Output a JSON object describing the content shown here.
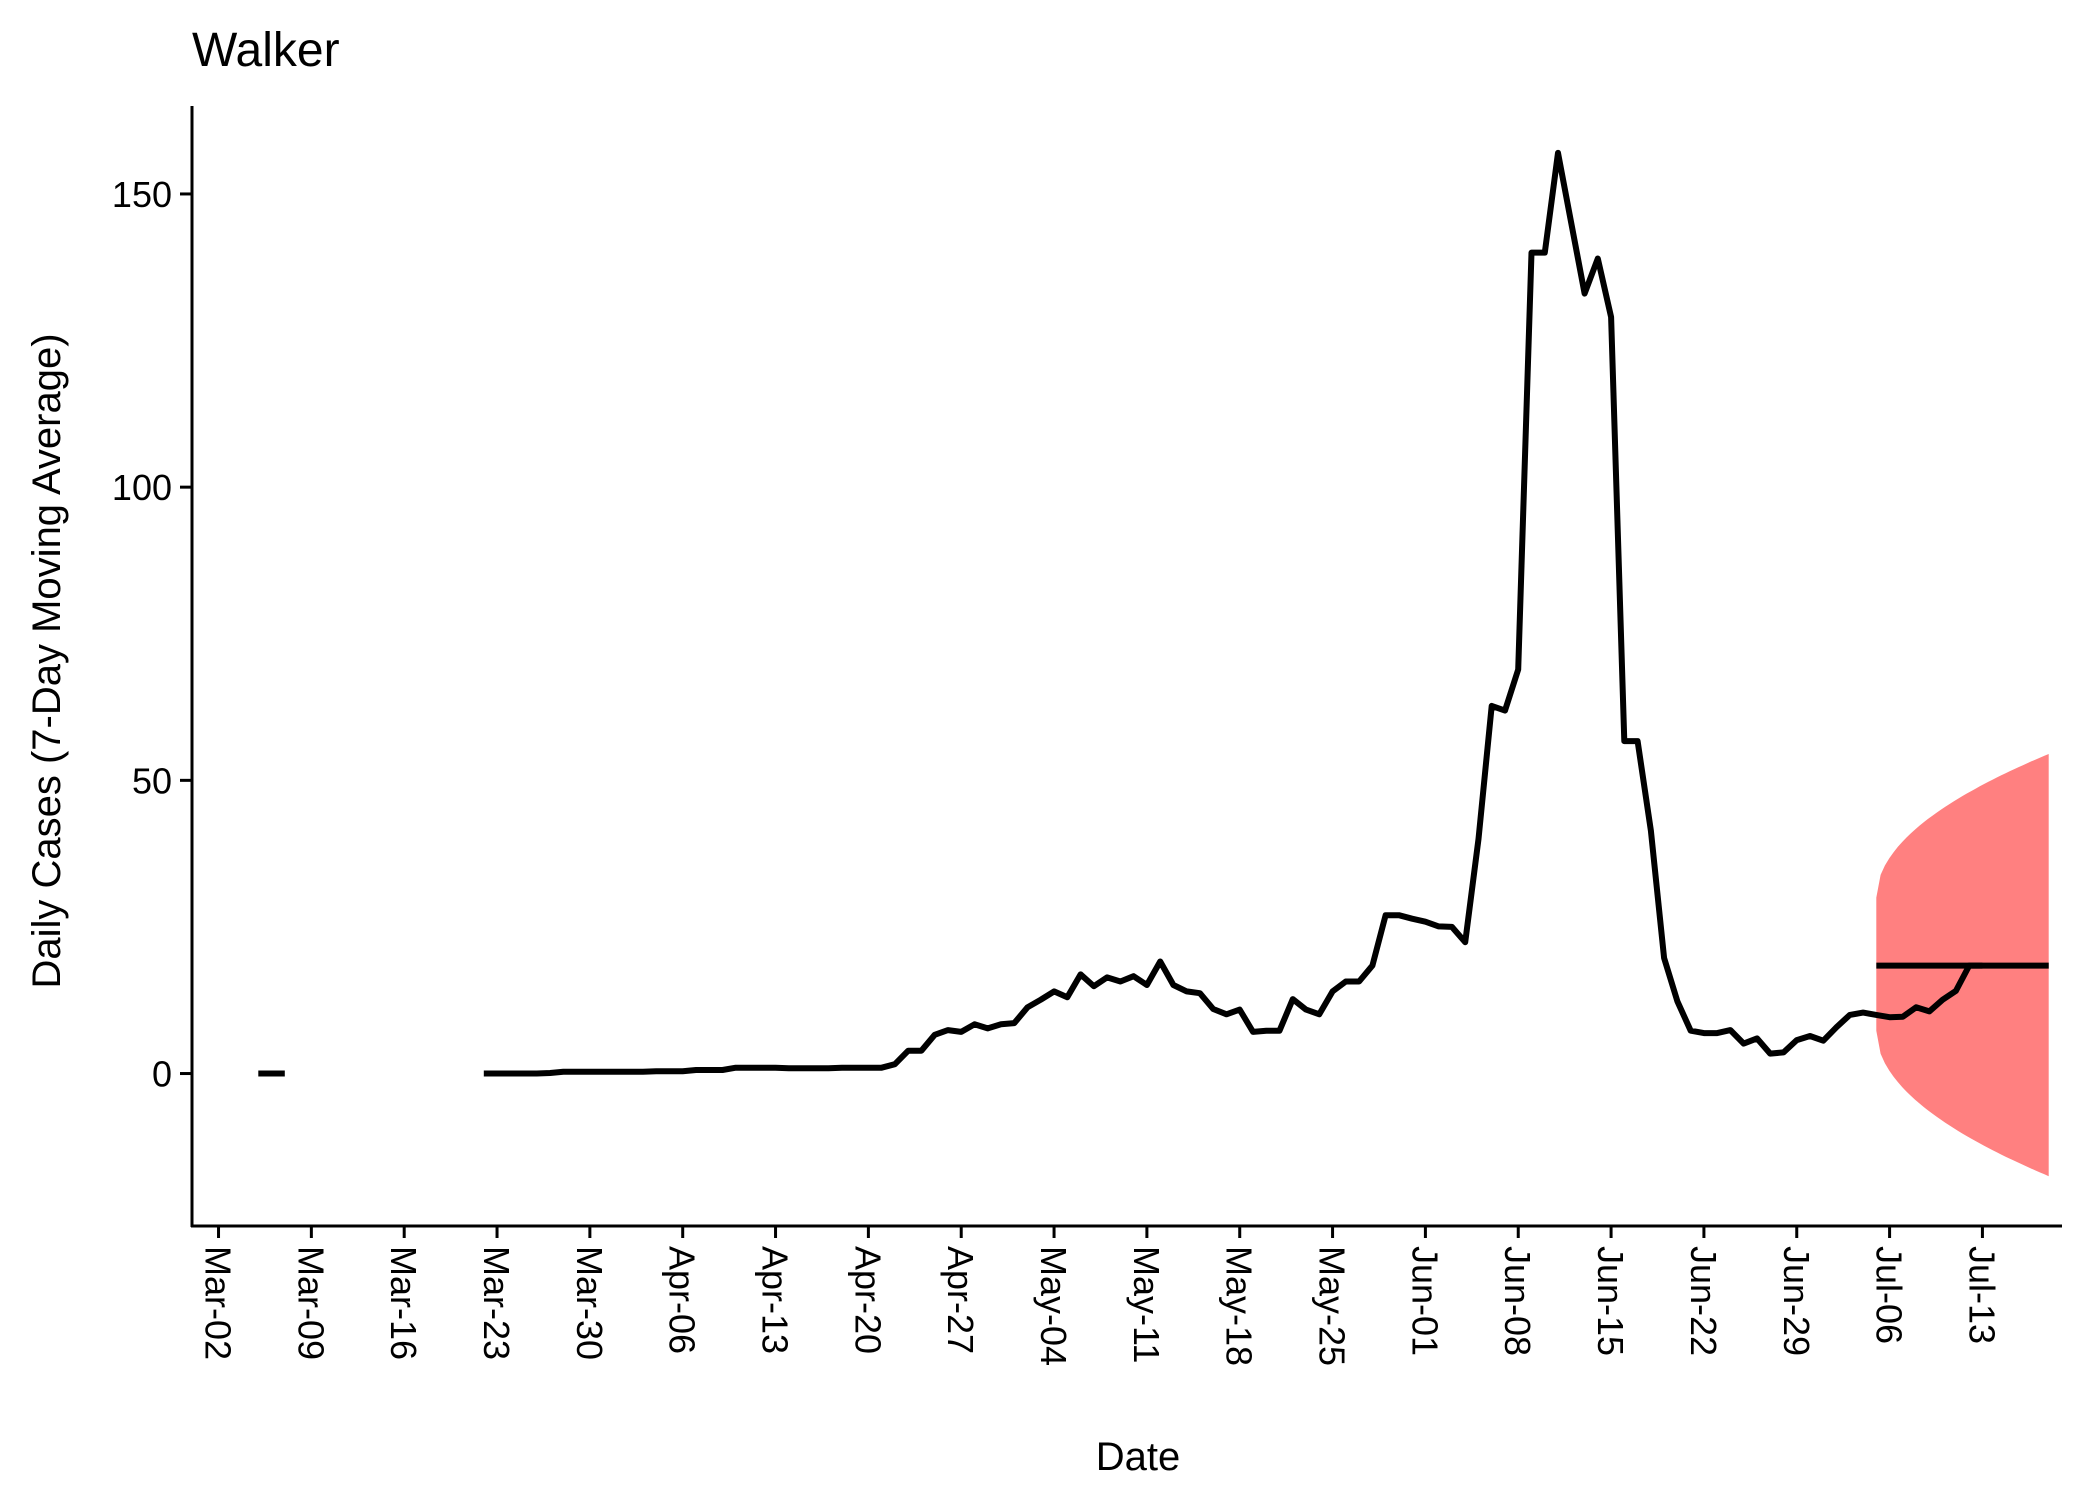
{
  "chart_data": {
    "type": "line",
    "title": "Walker",
    "xlabel": "Date",
    "ylabel": "Daily Cases (7-Day Moving Average)",
    "x_ticks": [
      "Mar-02",
      "Mar-09",
      "Mar-16",
      "Mar-23",
      "Mar-30",
      "Apr-06",
      "Apr-13",
      "Apr-20",
      "Apr-27",
      "May-04",
      "May-11",
      "May-18",
      "May-25",
      "Jun-01",
      "Jun-08",
      "Jun-15",
      "Jun-22",
      "Jun-29",
      "Jul-06",
      "Jul-13"
    ],
    "y_ticks": [
      0,
      50,
      100,
      150
    ],
    "ylim": [
      -26,
      165
    ],
    "xlim": [
      "2020-02-29",
      "2020-07-19"
    ],
    "grid": false,
    "series": [
      {
        "segments": [
          {
            "start": "2020-03-05",
            "values": [
              0,
              0,
              0
            ]
          },
          {
            "start": "2020-03-22",
            "values": [
              0,
              0,
              0,
              0,
              0,
              0.1,
              0.3,
              0.3,
              0.3,
              0.3,
              0.3,
              0.3,
              0.3,
              0.4,
              0.4,
              0.4,
              0.6,
              0.6,
              0.6,
              1,
              1,
              1,
              1,
              0.9,
              0.9,
              0.9,
              0.9,
              1,
              1,
              1,
              1,
              1.6,
              3.9,
              3.9,
              6.6,
              7.4,
              7.1,
              8.4,
              7.7,
              8.4,
              8.6,
              11.3,
              12.6,
              14,
              13,
              16.9,
              14.9,
              16.4,
              15.7,
              16.6,
              15.1,
              19.1,
              15.1,
              14,
              13.7,
              11,
              10.1,
              10.9,
              7.1,
              7.3,
              7.3,
              12.7,
              10.9,
              10.1,
              14,
              15.7,
              15.7,
              18.4,
              27,
              27,
              26.4,
              25.9,
              25.1,
              25,
              22.4,
              40,
              62.7,
              61.9,
              68.9,
              140,
              140,
              157,
              145,
              133,
              139,
              129,
              56.7,
              56.7,
              41.4,
              19.7,
              12.3,
              7.3,
              6.9,
              6.9,
              7.4,
              5.1,
              6,
              3.4,
              3.6,
              5.7,
              6.4,
              5.6,
              7.9,
              10,
              10.4,
              10,
              9.6,
              9.7,
              11.3,
              10.6,
              12.6,
              14.1,
              18.4,
              18.4
            ]
          }
        ]
      },
      {
        "forecast": true,
        "start": "2020-07-05",
        "end": "2020-07-18",
        "value": 18.4
      }
    ],
    "ribbon": {
      "color": "#ff8080",
      "start": "2020-07-05",
      "end": "2020-07-18",
      "upper_start": 30,
      "upper_end": 54.5,
      "lower_start": 7.3,
      "lower_end": -17.5
    },
    "line_color": "#000000"
  }
}
